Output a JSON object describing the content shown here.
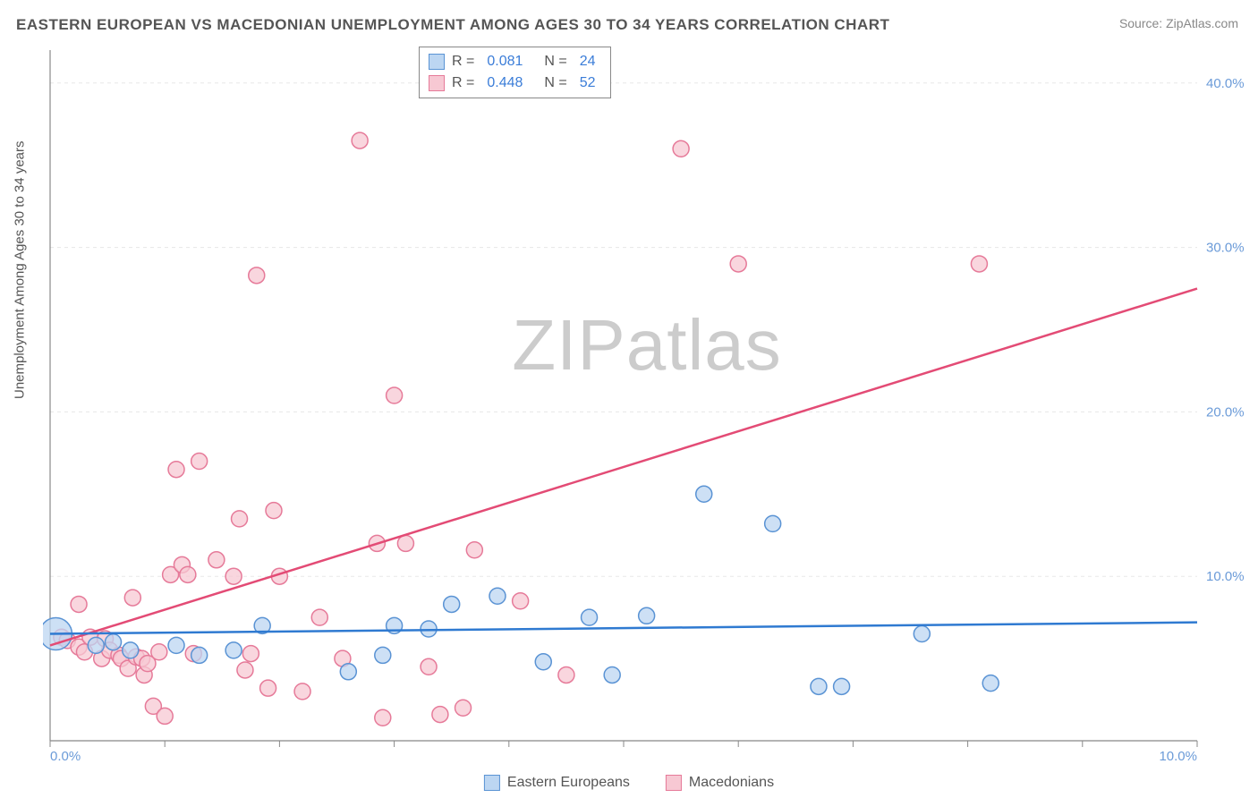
{
  "title": "EASTERN EUROPEAN VS MACEDONIAN UNEMPLOYMENT AMONG AGES 30 TO 34 YEARS CORRELATION CHART",
  "source": "Source: ZipAtlas.com",
  "ylabel": "Unemployment Among Ages 30 to 34 years",
  "watermark_a": "ZIP",
  "watermark_b": "atlas",
  "chart": {
    "type": "scatter",
    "background_color": "#ffffff",
    "grid_color": "#e8e8e8",
    "axis_color": "#888888",
    "tick_label_color": "#6b9bd8",
    "xlim": [
      0,
      10
    ],
    "ylim": [
      0,
      42
    ],
    "x_ticks": [
      0,
      1,
      2,
      3,
      4,
      5,
      6,
      7,
      8,
      9,
      10
    ],
    "x_tick_labels": {
      "0": "0.0%",
      "10": "10.0%"
    },
    "y_ticks": [
      10,
      20,
      30,
      40
    ],
    "y_tick_labels": {
      "10": "10.0%",
      "20": "20.0%",
      "30": "30.0%",
      "40": "40.0%"
    },
    "marker_radius": 9,
    "marker_stroke_width": 1.5,
    "trend_line_width": 2.5,
    "series": [
      {
        "name": "Eastern Europeans",
        "fill": "#bcd6f2",
        "stroke": "#5a93d4",
        "line_color": "#2f7ad1",
        "R": "0.081",
        "N": "24",
        "trend": {
          "x1": 0,
          "y1": 6.5,
          "x2": 10,
          "y2": 7.2
        },
        "points": [
          [
            0.05,
            6.5,
            18
          ],
          [
            0.4,
            5.8
          ],
          [
            0.55,
            6.0
          ],
          [
            0.7,
            5.5
          ],
          [
            1.1,
            5.8
          ],
          [
            1.3,
            5.2
          ],
          [
            1.6,
            5.5
          ],
          [
            1.85,
            7.0
          ],
          [
            2.6,
            4.2
          ],
          [
            2.9,
            5.2
          ],
          [
            3.0,
            7.0
          ],
          [
            3.3,
            6.8
          ],
          [
            3.5,
            8.3
          ],
          [
            3.9,
            8.8
          ],
          [
            4.3,
            4.8
          ],
          [
            4.7,
            7.5
          ],
          [
            4.9,
            4.0
          ],
          [
            5.2,
            7.6
          ],
          [
            5.7,
            15.0
          ],
          [
            6.3,
            13.2
          ],
          [
            6.7,
            3.3
          ],
          [
            6.9,
            3.3
          ],
          [
            7.6,
            6.5
          ],
          [
            8.2,
            3.5
          ]
        ]
      },
      {
        "name": "Macedonians",
        "fill": "#f7c8d3",
        "stroke": "#e67a99",
        "line_color": "#e34b75",
        "R": "0.448",
        "N": "52",
        "trend": {
          "x1": 0,
          "y1": 5.8,
          "x2": 10,
          "y2": 27.5
        },
        "points": [
          [
            0.1,
            6.3
          ],
          [
            0.15,
            6.1
          ],
          [
            0.25,
            5.7
          ],
          [
            0.25,
            8.3
          ],
          [
            0.3,
            5.4
          ],
          [
            0.35,
            6.3
          ],
          [
            0.45,
            5.0
          ],
          [
            0.48,
            6.2
          ],
          [
            0.52,
            5.5
          ],
          [
            0.6,
            5.2
          ],
          [
            0.62,
            5.0
          ],
          [
            0.68,
            4.4
          ],
          [
            0.72,
            8.7
          ],
          [
            0.75,
            5.1
          ],
          [
            0.8,
            5.0
          ],
          [
            0.82,
            4.0
          ],
          [
            0.85,
            4.7
          ],
          [
            0.9,
            2.1
          ],
          [
            0.95,
            5.4
          ],
          [
            1.0,
            1.5
          ],
          [
            1.05,
            10.1
          ],
          [
            1.1,
            16.5
          ],
          [
            1.15,
            10.7
          ],
          [
            1.2,
            10.1
          ],
          [
            1.25,
            5.3
          ],
          [
            1.3,
            17.0
          ],
          [
            1.45,
            11.0
          ],
          [
            1.6,
            10.0
          ],
          [
            1.65,
            13.5
          ],
          [
            1.7,
            4.3
          ],
          [
            1.75,
            5.3
          ],
          [
            1.8,
            28.3
          ],
          [
            1.9,
            3.2
          ],
          [
            1.95,
            14.0
          ],
          [
            2.0,
            10.0
          ],
          [
            2.2,
            3.0
          ],
          [
            2.35,
            7.5
          ],
          [
            2.55,
            5.0
          ],
          [
            2.7,
            36.5
          ],
          [
            2.85,
            12.0
          ],
          [
            2.9,
            1.4
          ],
          [
            3.0,
            21.0
          ],
          [
            3.1,
            12.0
          ],
          [
            3.3,
            4.5
          ],
          [
            3.4,
            1.6
          ],
          [
            3.6,
            2.0
          ],
          [
            3.7,
            11.6
          ],
          [
            4.1,
            8.5
          ],
          [
            4.5,
            4.0
          ],
          [
            5.5,
            36.0
          ],
          [
            6.0,
            29.0
          ],
          [
            8.1,
            29.0
          ]
        ]
      }
    ]
  },
  "legend_top": {
    "rows": [
      {
        "swatch_fill": "#bcd6f2",
        "swatch_stroke": "#5a93d4",
        "R_label": "R =",
        "R": "0.081",
        "N_label": "N =",
        "N": "24"
      },
      {
        "swatch_fill": "#f7c8d3",
        "swatch_stroke": "#e67a99",
        "R_label": "R =",
        "R": "0.448",
        "N_label": "N =",
        "N": "52"
      }
    ]
  },
  "legend_bottom": [
    {
      "swatch_fill": "#bcd6f2",
      "swatch_stroke": "#5a93d4",
      "label": "Eastern Europeans"
    },
    {
      "swatch_fill": "#f7c8d3",
      "swatch_stroke": "#e67a99",
      "label": "Macedonians"
    }
  ]
}
